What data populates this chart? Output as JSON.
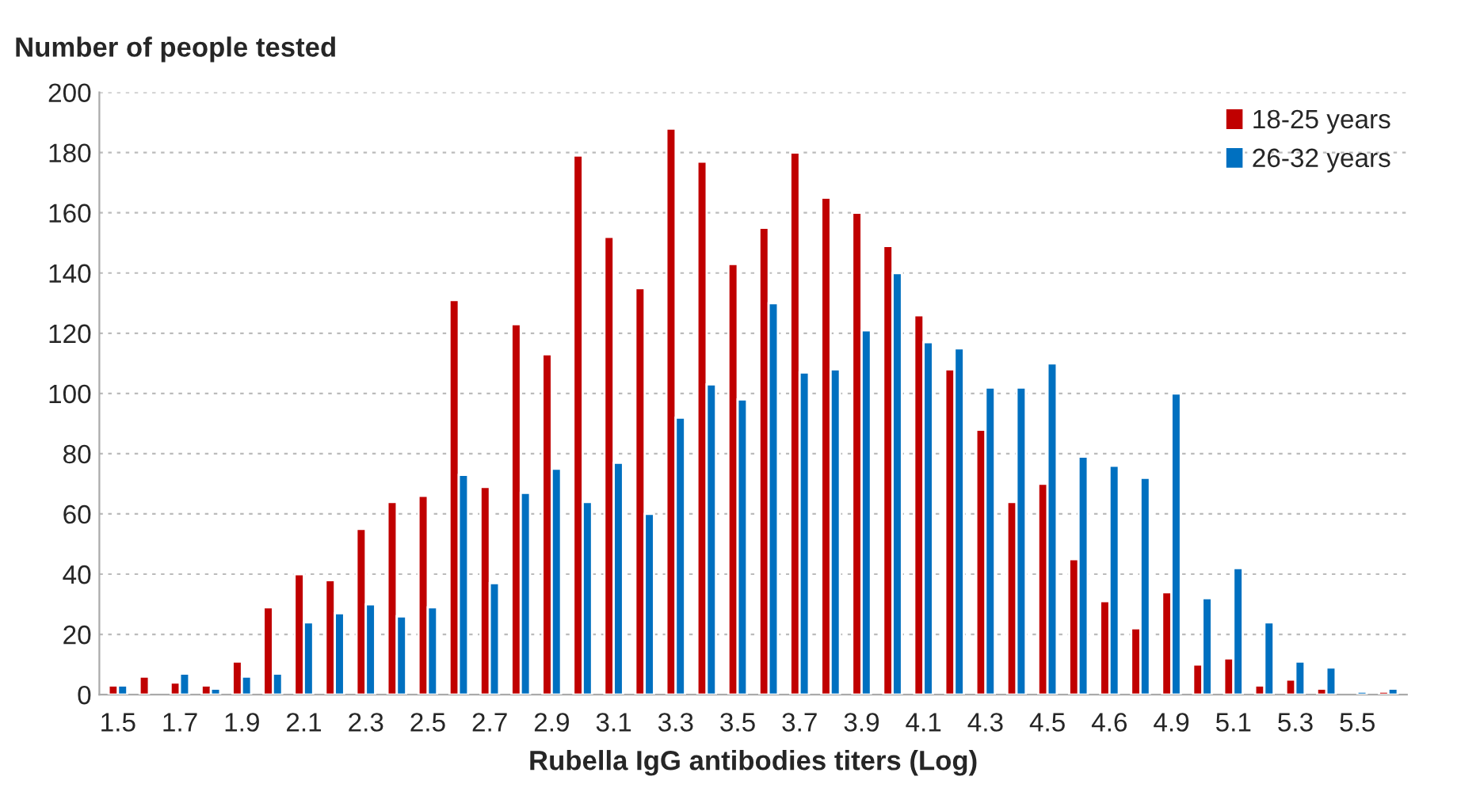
{
  "chart_data": {
    "type": "bar",
    "ylabel": "Number of people tested",
    "xlabel": "Rubella IgG antibodies titers (Log)",
    "categories": [
      "1.5",
      null,
      "1.7",
      null,
      "1.9",
      null,
      "2.1",
      null,
      "2.3",
      null,
      "2.5",
      null,
      "2.7",
      null,
      "2.9",
      null,
      "3.1",
      null,
      "3.3",
      null,
      "3.5",
      null,
      "3.7",
      null,
      "3.9",
      null,
      "4.1",
      null,
      "4.3",
      null,
      "4.5",
      null,
      "4.6",
      null,
      "4.9",
      null,
      "5.1",
      null,
      "5.3",
      null,
      "5.5",
      null
    ],
    "series": [
      {
        "name": "18-25 years",
        "color": "#c00000",
        "values": [
          3,
          6,
          4,
          3,
          11,
          29,
          40,
          38,
          55,
          64,
          66,
          131,
          69,
          123,
          113,
          179,
          152,
          135,
          188,
          177,
          143,
          155,
          180,
          165,
          160,
          149,
          126,
          108,
          88,
          64,
          70,
          45,
          31,
          22,
          34,
          10,
          12,
          3,
          5,
          2,
          null,
          1
        ]
      },
      {
        "name": "26-32 years",
        "color": "#0070c0",
        "values": [
          3,
          null,
          7,
          2,
          6,
          7,
          24,
          27,
          30,
          26,
          29,
          73,
          37,
          67,
          75,
          64,
          77,
          60,
          92,
          103,
          98,
          130,
          107,
          108,
          121,
          140,
          117,
          115,
          102,
          102,
          110,
          79,
          76,
          72,
          100,
          32,
          42,
          24,
          11,
          9,
          1,
          2
        ]
      }
    ],
    "ylim": [
      0,
      200
    ],
    "yticks": [
      0,
      20,
      40,
      60,
      80,
      100,
      120,
      140,
      160,
      180,
      200
    ],
    "grid": "y",
    "legend": "top right"
  }
}
